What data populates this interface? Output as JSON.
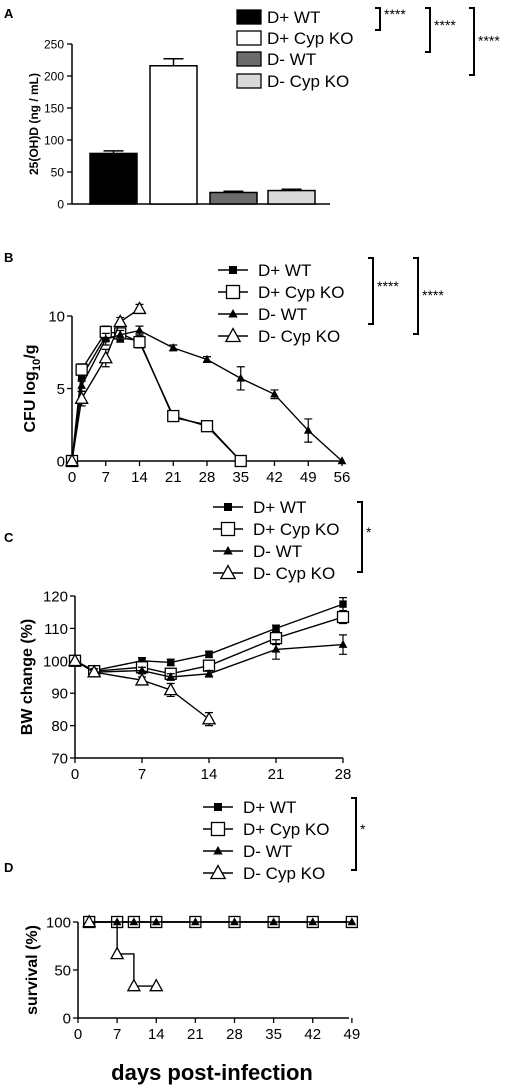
{
  "figure": {
    "xlabel_bottom": "days post-infection"
  },
  "chart_data": [
    {
      "panel": "A",
      "type": "bar",
      "ylabel": "25(OH)D (ng / mL)",
      "ylim": [
        0,
        250
      ],
      "yticks": [
        0,
        50,
        100,
        150,
        200,
        250
      ],
      "categories": [
        "D+ WT",
        "D+ Cyp KO",
        "D-  WT",
        "D-  Cyp KO"
      ],
      "values": [
        79,
        216,
        18,
        21
      ],
      "errors": [
        4,
        11,
        2,
        2
      ],
      "colors": [
        "#000000",
        "#ffffff",
        "#6b6b6b",
        "#d9d9d9"
      ],
      "legend": [
        "D+ WT",
        "D+ Cyp KO",
        "D-  WT",
        "D-  Cyp KO"
      ],
      "significance": [
        "****",
        "****",
        "****"
      ]
    },
    {
      "panel": "B",
      "type": "line",
      "ylabel": "CFU log",
      "ylabel_sub": "10",
      "ylabel_suffix": "/g",
      "xlim": [
        0,
        56
      ],
      "ylim": [
        0,
        10
      ],
      "xticks": [
        0,
        7,
        14,
        21,
        28,
        35,
        42,
        49,
        56
      ],
      "yticks": [
        0,
        5,
        10
      ],
      "series": [
        {
          "name": "D+ WT",
          "marker": "filled-square",
          "x": [
            0,
            2,
            7,
            10,
            14,
            21,
            28,
            35
          ],
          "y": [
            0,
            5.8,
            8.6,
            8.5,
            8.3,
            3.0,
            2.5,
            0
          ],
          "err": [
            0,
            0.3,
            0.3,
            0.3,
            0.3,
            0.2,
            0.2,
            0
          ]
        },
        {
          "name": "D+ Cyp KO",
          "marker": "open-square",
          "x": [
            0,
            2,
            7,
            10,
            14,
            21,
            28,
            35
          ],
          "y": [
            0,
            6.3,
            8.9,
            8.8,
            8.2,
            3.1,
            2.4,
            0
          ],
          "err": [
            0,
            0.4,
            0.4,
            0.3,
            0.4,
            0.2,
            0.2,
            0
          ]
        },
        {
          "name": "D- WT",
          "marker": "filled-triangle",
          "x": [
            0,
            2,
            7,
            10,
            14,
            21,
            28,
            35,
            42,
            49,
            56
          ],
          "y": [
            0,
            5.2,
            8.4,
            8.7,
            9.0,
            7.8,
            7.0,
            5.7,
            4.6,
            2.1,
            0
          ],
          "err": [
            0,
            0.4,
            0.4,
            0.3,
            0.3,
            0.2,
            0.2,
            0.8,
            0.3,
            0.8,
            0
          ]
        },
        {
          "name": "D- Cyp KO",
          "marker": "open-triangle",
          "x": [
            0,
            2,
            7,
            10,
            14
          ],
          "y": [
            0,
            4.3,
            7.1,
            9.6,
            10.5
          ],
          "err": [
            0,
            0.5,
            0.6,
            0.3,
            0.3
          ]
        }
      ],
      "significance": [
        "****",
        "****"
      ]
    },
    {
      "panel": "C",
      "type": "line",
      "ylabel": "BW change (%)",
      "xlim": [
        0,
        28
      ],
      "ylim": [
        70,
        120
      ],
      "xticks": [
        0,
        7,
        14,
        21,
        28
      ],
      "yticks": [
        70,
        80,
        90,
        100,
        110,
        120
      ],
      "series": [
        {
          "name": "D+ WT",
          "marker": "filled-square",
          "x": [
            0,
            2,
            7,
            10,
            14,
            21,
            28
          ],
          "y": [
            100,
            97,
            100,
            99.5,
            102,
            110,
            117.5
          ],
          "err": [
            0,
            1,
            1,
            1,
            1,
            1,
            2
          ]
        },
        {
          "name": "D+ Cyp KO",
          "marker": "open-square",
          "x": [
            0,
            2,
            7,
            10,
            14,
            21,
            28
          ],
          "y": [
            100,
            96.8,
            98,
            96,
            98.5,
            107,
            113.5
          ],
          "err": [
            0,
            1,
            1,
            1.5,
            1.5,
            2,
            2
          ]
        },
        {
          "name": "D- WT",
          "marker": "filled-triangle",
          "x": [
            0,
            2,
            7,
            10,
            14,
            21,
            28
          ],
          "y": [
            100,
            96.5,
            97,
            95,
            96,
            103.5,
            105
          ],
          "err": [
            0,
            1,
            1,
            1,
            1,
            3,
            3
          ]
        },
        {
          "name": "D- Cyp KO",
          "marker": "open-triangle",
          "x": [
            0,
            2,
            7,
            10,
            14
          ],
          "y": [
            100,
            96.5,
            94,
            91,
            82
          ],
          "err": [
            0,
            1,
            1,
            2,
            2
          ]
        }
      ],
      "significance": [
        "*"
      ]
    },
    {
      "panel": "D",
      "type": "line",
      "ylabel": "survival (%)",
      "xlim": [
        0,
        56
      ],
      "ylim": [
        0,
        100
      ],
      "xticks": [
        0,
        7,
        14,
        21,
        28,
        35,
        42,
        49
      ],
      "yticks": [
        0,
        50,
        100
      ],
      "series": [
        {
          "name": "D+ WT",
          "marker": "filled-square",
          "x": [
            2,
            7,
            10,
            14,
            21,
            28,
            35,
            42,
            49
          ],
          "y": [
            100,
            100,
            100,
            100,
            100,
            100,
            100,
            100,
            100
          ]
        },
        {
          "name": "D+ Cyp KO",
          "marker": "open-square",
          "x": [
            2,
            7,
            10,
            14,
            21,
            28,
            35,
            42,
            49
          ],
          "y": [
            100,
            100,
            100,
            100,
            100,
            100,
            100,
            100,
            100
          ]
        },
        {
          "name": "D- WT",
          "marker": "filled-triangle",
          "x": [
            2,
            7,
            10,
            14,
            21,
            28,
            35,
            42,
            49
          ],
          "y": [
            100,
            100,
            100,
            100,
            100,
            100,
            100,
            100,
            100
          ]
        },
        {
          "name": "D- Cyp KO",
          "marker": "open-triangle",
          "x": [
            2,
            7,
            10,
            14
          ],
          "y": [
            100,
            66.7,
            33.3,
            33.3
          ]
        }
      ],
      "significance": [
        "*"
      ]
    }
  ]
}
